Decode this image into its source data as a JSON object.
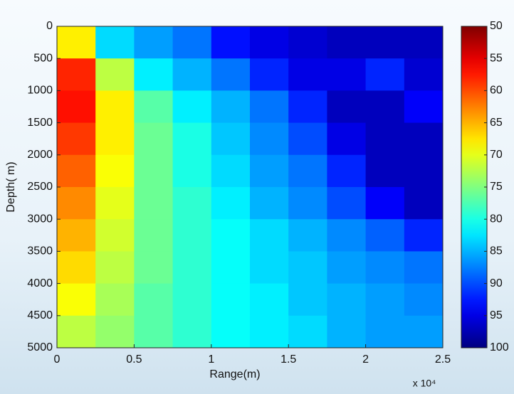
{
  "chart_data": {
    "type": "heatmap",
    "ylabel": "Depth(  m)",
    "xlabel": "Range(m)",
    "x_multiplier_label": "x 10⁴",
    "x": [
      0.125,
      0.375,
      0.625,
      0.875,
      1.125,
      1.375,
      1.625,
      1.875,
      2.125,
      2.375
    ],
    "y": [
      250,
      750,
      1250,
      1750,
      2250,
      2750,
      3250,
      3750,
      4250,
      4750
    ],
    "values": [
      [
        68,
        83,
        86,
        88,
        93,
        95,
        96,
        97,
        97,
        97
      ],
      [
        58,
        72,
        82,
        85,
        88,
        92,
        95,
        95,
        92,
        96
      ],
      [
        57,
        68,
        77,
        82,
        85,
        88,
        92,
        97,
        97,
        94
      ],
      [
        59,
        68,
        76,
        80,
        84,
        87,
        90,
        95,
        97,
        97
      ],
      [
        61,
        69,
        76,
        80,
        83,
        86,
        88,
        92,
        97,
        97
      ],
      [
        63,
        70,
        76,
        79,
        82,
        85,
        87,
        90,
        94,
        97
      ],
      [
        65,
        71,
        76,
        79,
        81,
        83,
        85,
        87,
        89,
        92
      ],
      [
        67,
        72,
        76,
        79,
        81,
        83,
        84,
        86,
        87,
        88
      ],
      [
        69,
        73,
        77,
        79,
        81,
        82,
        84,
        85,
        86,
        87
      ],
      [
        72,
        74,
        77,
        79,
        81,
        82,
        83,
        85,
        86,
        86
      ]
    ],
    "xlim": [
      0,
      2.5
    ],
    "xticks": [
      0,
      0.5,
      1,
      1.5,
      2,
      2.5
    ],
    "ylim": [
      0,
      5000
    ],
    "yticks": [
      0,
      500,
      1000,
      1500,
      2000,
      2500,
      3000,
      3500,
      4000,
      4500,
      5000
    ],
    "y_inverted": true,
    "colormap": "jet_r",
    "clim": [
      50,
      100
    ],
    "cticks": [
      50,
      55,
      60,
      65,
      70,
      75,
      80,
      85,
      90,
      95,
      100
    ]
  }
}
